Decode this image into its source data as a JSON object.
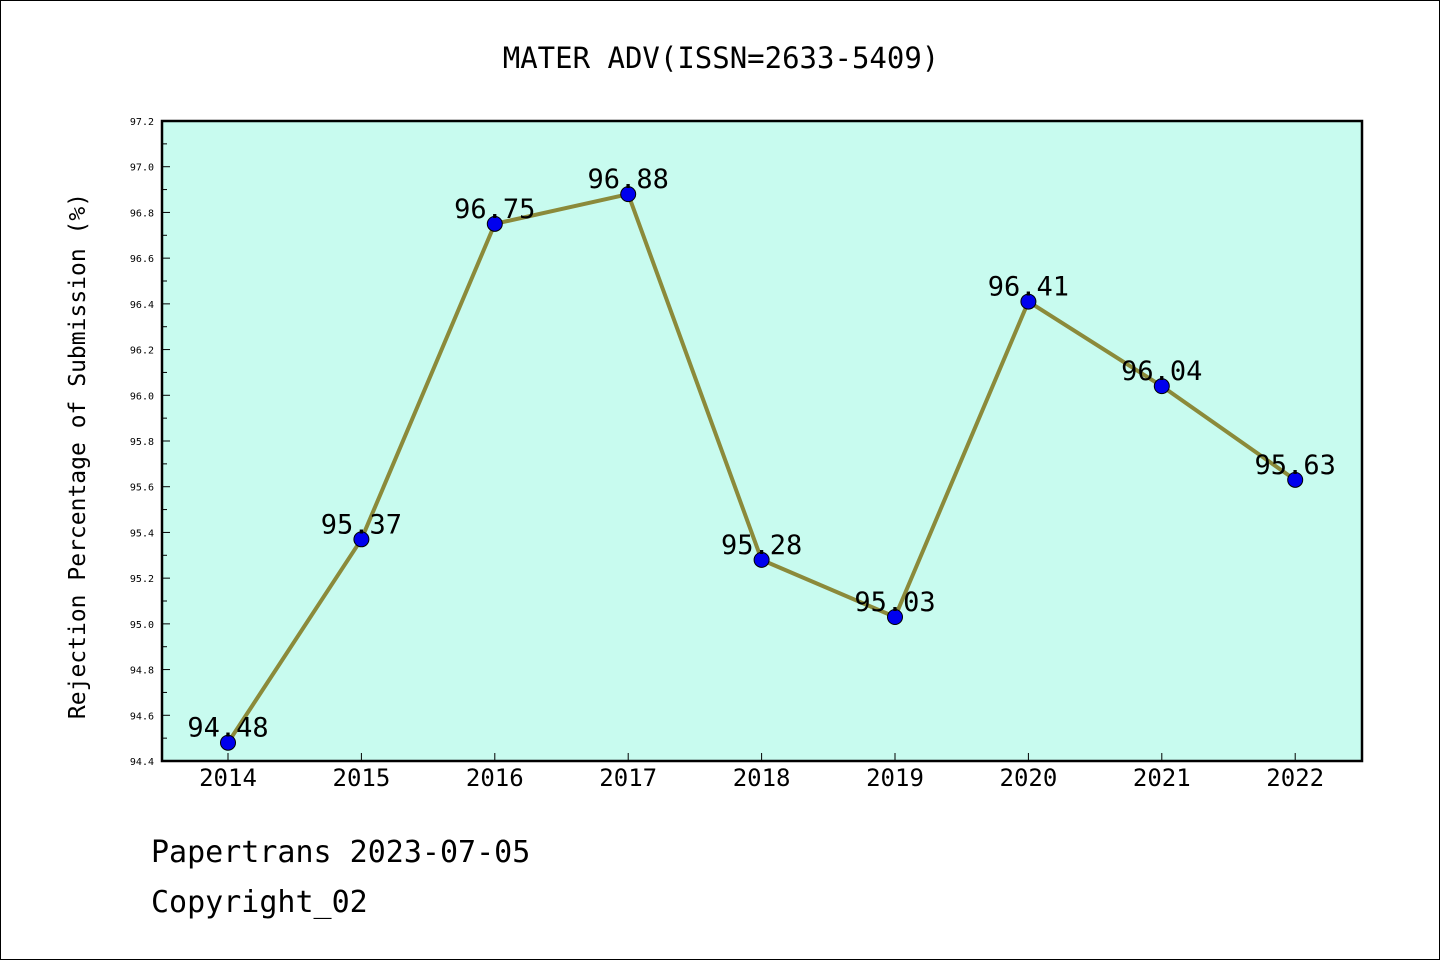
{
  "chart_data": {
    "type": "line",
    "title": "MATER ADV(ISSN=2633-5409)",
    "xlabel": "",
    "ylabel": "Rejection Percentage of Submission (%)",
    "categories": [
      "2014",
      "2015",
      "2016",
      "2017",
      "2018",
      "2019",
      "2020",
      "2021",
      "2022"
    ],
    "series": [
      {
        "values": [
          94.48,
          95.37,
          96.75,
          96.88,
          95.28,
          95.03,
          96.41,
          96.04,
          95.63
        ],
        "data_labels": [
          "94.48",
          "95.37",
          "96.75",
          "96.88",
          "95.28",
          "95.03",
          "96.41",
          "96.04",
          "95.63"
        ]
      }
    ],
    "ylim": [
      94.4,
      97.2
    ],
    "yticks": [
      "94.4",
      "94.6",
      "94.8",
      "95.0",
      "95.2",
      "95.4",
      "95.6",
      "95.8",
      "96.0",
      "96.2",
      "96.4",
      "96.6",
      "96.8",
      "97.0",
      "97.2"
    ],
    "grid": false,
    "colors": {
      "plot_background": "#c8fbef",
      "line": "#8b8a3a",
      "marker": "#0000ee"
    }
  },
  "footer": {
    "date_line": "Papertrans 2023-07-05",
    "copyright_line": "Copyright_02"
  }
}
